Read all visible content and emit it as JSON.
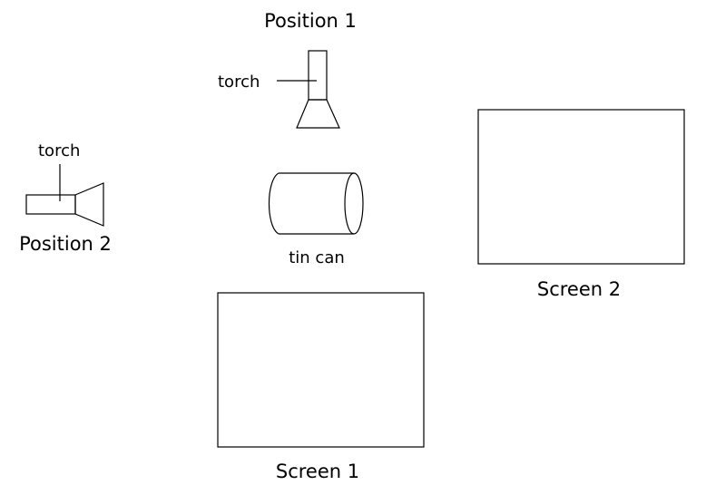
{
  "labels": {
    "position_1": "Position 1",
    "position_2": "Position 2",
    "torch_1": "torch",
    "torch_2": "torch",
    "tin_can": "tin can",
    "screen_1": "Screen 1",
    "screen_2": "Screen 2"
  },
  "colors": {
    "stroke": "#000000",
    "background": "#ffffff"
  }
}
